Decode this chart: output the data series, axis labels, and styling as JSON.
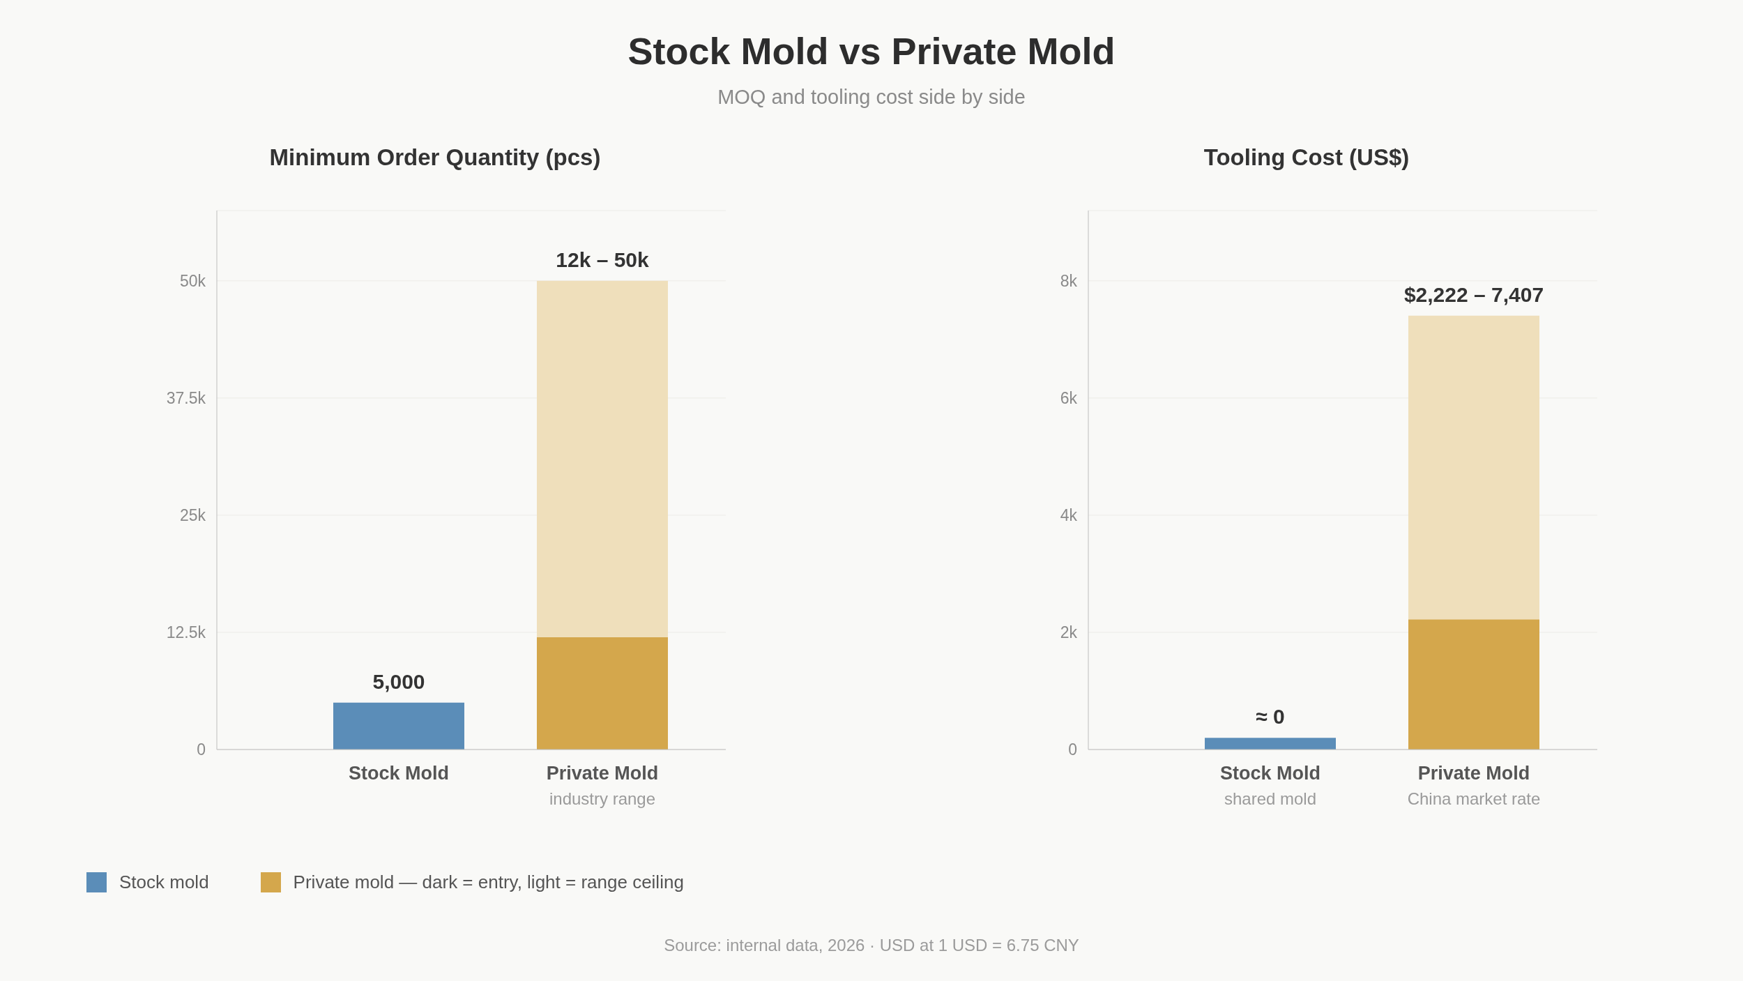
{
  "chart_data": [
    {
      "type": "bar",
      "title": "Stock Mold vs Private Mold",
      "subtitle": "MOQ and tooling cost side by side",
      "ylabel": "Minimum Order Quantity (pcs)",
      "categories": [
        "Stock Mold",
        "Private Mold\nindustry range"
      ],
      "series": [
        {
          "name": "Stock mold",
          "color": "#5b8db8",
          "values": [
            5000,
            null
          ],
          "value_labels": [
            "5,000",
            null
          ]
        },
        {
          "name": "Private mold — dark = entry, light = range ceiling",
          "color": "#d4a74c",
          "values": [
            null,
            12000
          ]
        },
        {
          "color": "#efdfbb",
          "values": [
            null,
            38000
          ]
        }
      ],
      "stacked": true,
      "ylim": [
        0,
        57500
      ],
      "yticks": [
        0,
        {
          "value": 12500,
          "label": "12.5k"
        },
        {
          "value": 25000,
          "label": "25k"
        },
        {
          "value": 37500,
          "label": "37.5k"
        },
        {
          "value": 50000,
          "label": "50k"
        }
      ],
      "grid": "y",
      "legend": "bottom left",
      "annotations": [
        {
          "text": "12k – 50k",
          "x": "Private Mold\nindustry range",
          "y": 50000
        },
        "Source: internal data, 2026 · USD at 1 USD = 6.75 CNY"
      ]
    },
    {
      "type": "bar",
      "ylabel": "Tooling Cost (US$)",
      "categories": [
        "Stock Mold\nshared mold",
        "Private Mold\nChina market rate"
      ],
      "series": [
        {
          "color": "#5b8db8",
          "values": [
            200,
            null
          ]
        },
        {
          "color": "#d4a74c",
          "values": [
            null,
            2222
          ]
        },
        {
          "color": "#efdfbb",
          "values": [
            null,
            5185
          ]
        }
      ],
      "stacked": true,
      "ylim": [
        0,
        9200
      ],
      "yticks": [
        0,
        {
          "value": 2000,
          "label": "2k"
        },
        {
          "value": 4000,
          "label": "4k"
        },
        {
          "value": 6000,
          "label": "6k"
        },
        {
          "value": 8000,
          "label": "8k"
        }
      ],
      "grid": "y",
      "annotations": [
        {
          "text": "≈ 0",
          "x": "Stock Mold\nshared mold",
          "y": 200
        },
        {
          "text": "$2,222 – 7,407",
          "x": "Private Mold\nChina market rate",
          "y": 7407
        }
      ]
    }
  ]
}
